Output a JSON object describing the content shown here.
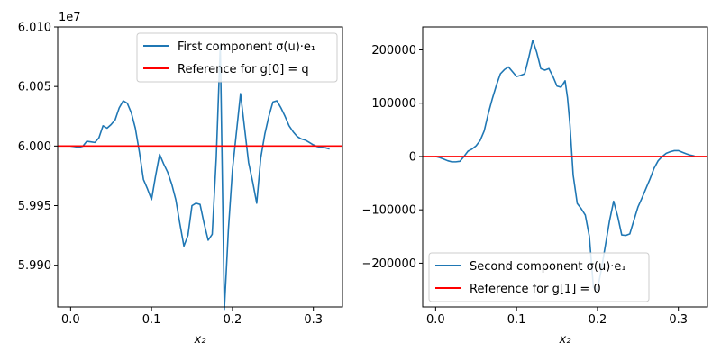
{
  "chart_data": [
    {
      "type": "line",
      "title": "",
      "xlabel": "x₂",
      "ylabel": "",
      "y_offset_label": "1e7",
      "xlim": [
        -0.016,
        0.336
      ],
      "ylim": [
        59865000,
        60100000
      ],
      "xticks": [
        0.0,
        0.1,
        0.2,
        0.3
      ],
      "xtick_labels": [
        "0.0",
        "0.1",
        "0.2",
        "0.3"
      ],
      "yticks": [
        59900000,
        59950000,
        60000000,
        60050000,
        60100000
      ],
      "ytick_labels": [
        "5.990",
        "5.995",
        "6.000",
        "6.005",
        "6.010"
      ],
      "grid": false,
      "legend_position": "upper right",
      "series": [
        {
          "name": "First component σ(u)·e₁",
          "color": "#1f77b4",
          "x": [
            0.0,
            0.005,
            0.01,
            0.015,
            0.02,
            0.025,
            0.03,
            0.035,
            0.04,
            0.045,
            0.05,
            0.055,
            0.06,
            0.065,
            0.07,
            0.075,
            0.08,
            0.085,
            0.09,
            0.095,
            0.1,
            0.105,
            0.11,
            0.115,
            0.12,
            0.125,
            0.13,
            0.135,
            0.14,
            0.145,
            0.15,
            0.155,
            0.16,
            0.165,
            0.17,
            0.175,
            0.18,
            0.185,
            0.19,
            0.195,
            0.2,
            0.205,
            0.21,
            0.215,
            0.22,
            0.225,
            0.23,
            0.235,
            0.24,
            0.245,
            0.25,
            0.255,
            0.26,
            0.265,
            0.27,
            0.275,
            0.28,
            0.285,
            0.29,
            0.295,
            0.3,
            0.305,
            0.31,
            0.315,
            0.32
          ],
          "y": [
            60000000,
            59999500,
            59999000,
            59999800,
            60004000,
            60003500,
            60003000,
            60007000,
            60017000,
            60015000,
            60018000,
            60022000,
            60032000,
            60038000,
            60036000,
            60028000,
            60015000,
            59995000,
            59972000,
            59964000,
            59955000,
            59975000,
            59993000,
            59985000,
            59978000,
            59968000,
            59955000,
            59935000,
            59916000,
            59925000,
            59950000,
            59952000,
            59951000,
            59935000,
            59921000,
            59926000,
            59990000,
            60085000,
            59863000,
            59930000,
            59980000,
            60012000,
            60044000,
            60015000,
            59986000,
            59970000,
            59952000,
            59990000,
            60010000,
            60025000,
            60037000,
            60038000,
            60032000,
            60025000,
            60017000,
            60012000,
            60008000,
            60006000,
            60005000,
            60003000,
            60001000,
            59999500,
            59999000,
            59998500,
            59997500
          ]
        },
        {
          "name": "Reference for g[0] = q",
          "color": "#ff0000",
          "x": [
            -0.016,
            0.336
          ],
          "y": [
            60000000,
            60000000
          ]
        }
      ]
    },
    {
      "type": "line",
      "title": "",
      "xlabel": "x₂",
      "ylabel": "",
      "xlim": [
        -0.016,
        0.336
      ],
      "ylim": [
        -282000,
        243000
      ],
      "xticks": [
        0.0,
        0.1,
        0.2,
        0.3
      ],
      "xtick_labels": [
        "0.0",
        "0.1",
        "0.2",
        "0.3"
      ],
      "yticks": [
        -200000,
        -100000,
        0,
        100000,
        200000
      ],
      "ytick_labels": [
        "−200000",
        "−100000",
        "0",
        "100000",
        "200000"
      ],
      "grid": false,
      "legend_position": "lower left",
      "series": [
        {
          "name": "Second component σ(u)·e₁",
          "color": "#1f77b4",
          "x": [
            0.0,
            0.005,
            0.01,
            0.015,
            0.02,
            0.025,
            0.03,
            0.035,
            0.04,
            0.045,
            0.05,
            0.055,
            0.06,
            0.065,
            0.07,
            0.075,
            0.08,
            0.085,
            0.09,
            0.095,
            0.1,
            0.105,
            0.11,
            0.115,
            0.12,
            0.125,
            0.13,
            0.135,
            0.14,
            0.145,
            0.15,
            0.155,
            0.16,
            0.163,
            0.166,
            0.17,
            0.175,
            0.18,
            0.185,
            0.19,
            0.195,
            0.2,
            0.205,
            0.21,
            0.215,
            0.22,
            0.225,
            0.23,
            0.235,
            0.24,
            0.245,
            0.25,
            0.255,
            0.26,
            0.265,
            0.27,
            0.275,
            0.28,
            0.285,
            0.29,
            0.295,
            0.3,
            0.305,
            0.31,
            0.315,
            0.32
          ],
          "y": [
            0,
            -2000,
            -5000,
            -8000,
            -10000,
            -10000,
            -9000,
            0,
            10000,
            14000,
            20000,
            30000,
            48000,
            80000,
            108000,
            133000,
            155000,
            163000,
            168000,
            159000,
            150000,
            152000,
            155000,
            185000,
            218000,
            195000,
            165000,
            162000,
            165000,
            150000,
            132000,
            130000,
            142000,
            110000,
            60000,
            -35000,
            -88000,
            -98000,
            -110000,
            -150000,
            -245000,
            -250000,
            -210000,
            -165000,
            -120000,
            -84000,
            -112000,
            -147000,
            -148000,
            -145000,
            -120000,
            -95000,
            -78000,
            -60000,
            -42000,
            -22000,
            -8000,
            0,
            6000,
            9000,
            11000,
            11000,
            8000,
            5000,
            2500,
            1000
          ]
        },
        {
          "name": "Reference for g[1] = 0",
          "color": "#ff0000",
          "x": [
            -0.016,
            0.336
          ],
          "y": [
            0,
            0
          ]
        }
      ]
    }
  ]
}
